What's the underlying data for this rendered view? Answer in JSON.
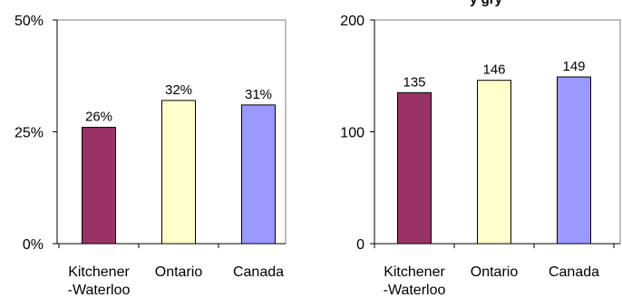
{
  "top_partial_text": "y    gry",
  "chart_data": [
    {
      "type": "bar",
      "categories": [
        [
          "Kitchener",
          "-Waterloo"
        ],
        [
          "Ontario"
        ],
        [
          "Canada"
        ]
      ],
      "values": [
        26,
        32,
        31
      ],
      "value_labels": [
        "26%",
        "32%",
        "31%"
      ],
      "yticks": [
        0,
        25,
        50
      ],
      "ytick_labels": [
        "0%",
        "25%",
        "50%"
      ],
      "ylim": [
        0,
        50
      ],
      "colors": [
        "#993366",
        "#ffffcc",
        "#9999ff"
      ],
      "grid": false
    },
    {
      "type": "bar",
      "categories": [
        [
          "Kitchener",
          "-Waterloo"
        ],
        [
          "Ontario"
        ],
        [
          "Canada"
        ]
      ],
      "values": [
        135,
        146,
        149
      ],
      "value_labels": [
        "135",
        "146",
        "149"
      ],
      "yticks": [
        0,
        100,
        200
      ],
      "ytick_labels": [
        "0",
        "100",
        "200"
      ],
      "ylim": [
        0,
        200
      ],
      "colors": [
        "#993366",
        "#ffffcc",
        "#9999ff"
      ],
      "grid": false
    }
  ]
}
